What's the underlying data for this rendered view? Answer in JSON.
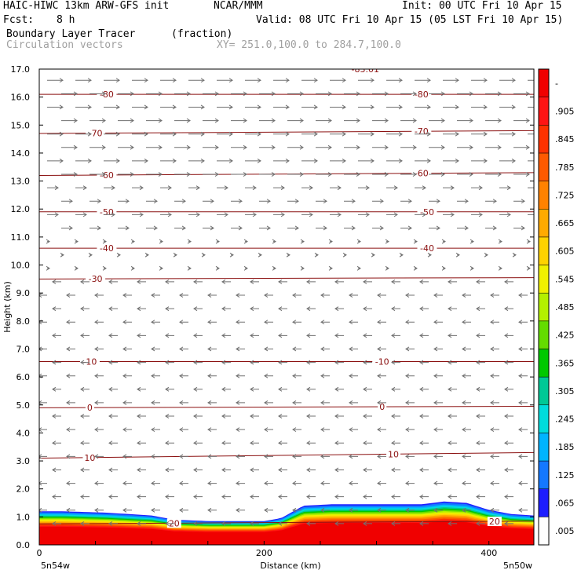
{
  "header": {
    "model": "HAIC-HIWC 13km ARW-GFS init",
    "org": "NCAR/MMM",
    "init": "Init: 00 UTC Fri 10 Apr 15",
    "fcst_label": "Fcst:",
    "fcst_value": "8 h",
    "valid": "Valid: 08 UTC Fri 10 Apr 15 (05 LST Fri 10 Apr 15)",
    "field": "Boundary Layer Tracer",
    "field_units": "(fraction)",
    "vectors": "Circulation vectors",
    "xy": "XY= 251.0,100.0 to 284.7,100.0"
  },
  "colors": {
    "contour": "#8b1010",
    "vector": "#707070",
    "axis": "#000000"
  },
  "chart_data": {
    "type": "heatmap",
    "title": "Boundary Layer Tracer",
    "xlabel": "Distance (km)",
    "ylabel": "Height (km)",
    "xlim": [
      0,
      440
    ],
    "ylim": [
      0,
      17
    ],
    "x_ticks": [
      {
        "value": 0,
        "label": "0"
      },
      {
        "value": 200,
        "label": "200"
      },
      {
        "value": 400,
        "label": "400"
      }
    ],
    "x_end_labels": {
      "left": "5n54w",
      "right": "5n50w"
    },
    "y_ticks": [
      {
        "value": 0,
        "label": "0.0"
      },
      {
        "value": 1,
        "label": "1.0"
      },
      {
        "value": 2,
        "label": "2.0"
      },
      {
        "value": 3,
        "label": "3.0"
      },
      {
        "value": 4,
        "label": "4.0"
      },
      {
        "value": 5,
        "label": "5.0"
      },
      {
        "value": 6,
        "label": "6.0"
      },
      {
        "value": 7,
        "label": "7.0"
      },
      {
        "value": 8,
        "label": "8.0"
      },
      {
        "value": 9,
        "label": "9.0"
      },
      {
        "value": 10,
        "label": "10.0"
      },
      {
        "value": 11,
        "label": "11.0"
      },
      {
        "value": 12,
        "label": "12.0"
      },
      {
        "value": 13,
        "label": "13.0"
      },
      {
        "value": 14,
        "label": "14.0"
      },
      {
        "value": 15,
        "label": "15.0"
      },
      {
        "value": 16,
        "label": "16.0"
      },
      {
        "value": 17,
        "label": "17.0"
      }
    ],
    "colorbar": {
      "labels": [
        ".005",
        ".065",
        ".125",
        ".185",
        ".245",
        ".305",
        ".365",
        ".425",
        ".485",
        ".545",
        ".605",
        ".665",
        ".725",
        ".785",
        ".845",
        ".905",
        "-"
      ],
      "colors": [
        "#ffffff",
        "#1e1eff",
        "#1478ff",
        "#00b4ff",
        "#00dcdc",
        "#00c896",
        "#00c800",
        "#64dc00",
        "#b4f000",
        "#f0f000",
        "#ffd200",
        "#ffaa00",
        "#ff8200",
        "#ff5a00",
        "#ff3200",
        "#ff1414",
        "#f00000"
      ]
    },
    "tracer_layer": {
      "x": [
        0,
        20,
        60,
        100,
        120,
        150,
        200,
        215,
        235,
        260,
        300,
        340,
        360,
        380,
        400,
        420,
        440
      ],
      "top_km": [
        1.2,
        1.2,
        1.15,
        1.05,
        0.9,
        0.85,
        0.85,
        0.95,
        1.4,
        1.45,
        1.45,
        1.45,
        1.55,
        1.5,
        1.25,
        1.1,
        1.05
      ]
    },
    "contours": [
      {
        "label": "-83.01",
        "km": [
          17.0,
          17.0
        ],
        "label_x": [
          290
        ]
      },
      {
        "label": "-80",
        "km": [
          16.1,
          16.1
        ],
        "label_x": [
          60,
          340
        ]
      },
      {
        "label": "-70",
        "km": [
          14.7,
          14.8
        ],
        "label_x": [
          50,
          340
        ]
      },
      {
        "label": "-60",
        "km": [
          13.2,
          13.3
        ],
        "label_x": [
          60,
          340
        ]
      },
      {
        "label": "-50",
        "km": [
          11.9,
          11.9
        ],
        "label_x": [
          60,
          345
        ]
      },
      {
        "label": "-40",
        "km": [
          10.6,
          10.6
        ],
        "label_x": [
          60,
          345
        ]
      },
      {
        "label": "-30",
        "km": [
          9.5,
          9.55
        ],
        "label_x": [
          50
        ]
      },
      {
        "label": "-10",
        "km": [
          6.55,
          6.55
        ],
        "label_x": [
          45,
          305
        ]
      },
      {
        "label": "0",
        "km": [
          4.9,
          4.95
        ],
        "label_x": [
          45,
          305
        ]
      },
      {
        "label": "10",
        "km": [
          3.1,
          3.3
        ],
        "label_x": [
          45,
          315
        ]
      },
      {
        "label": "20",
        "km": [
          0.75,
          0.85
        ],
        "label_x": [
          120,
          405
        ]
      }
    ]
  }
}
